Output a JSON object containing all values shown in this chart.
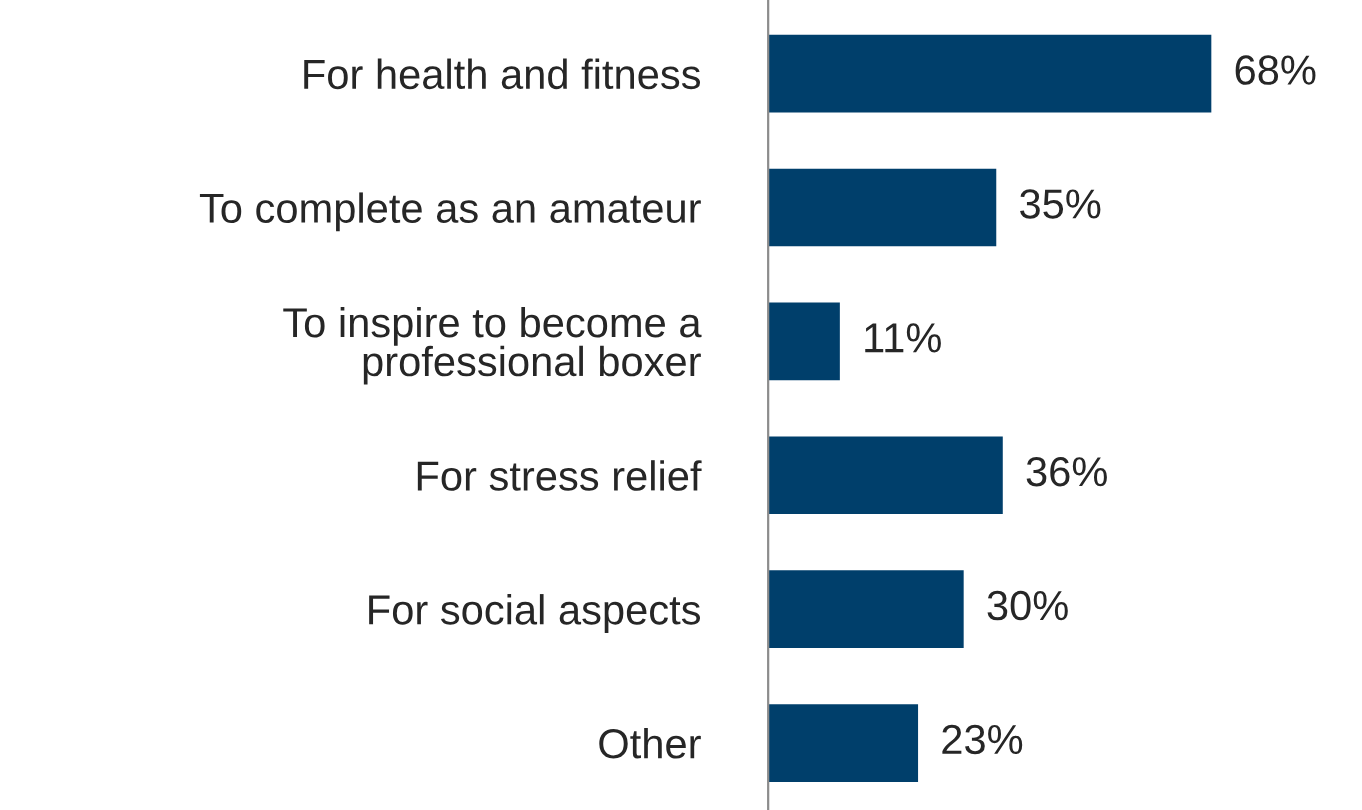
{
  "chart_data": {
    "type": "bar",
    "orientation": "horizontal",
    "categories": [
      "For health and fitness",
      "To complete as an amateur",
      "To inspire to become a\nprofessional boxer",
      "For stress relief",
      "For social aspects",
      "Other"
    ],
    "values": [
      68,
      35,
      11,
      36,
      30,
      23
    ],
    "color": "#003f6b",
    "value_labels": [
      "68%",
      "35%",
      "11%",
      "36%",
      "30%",
      "23%"
    ],
    "grid": false,
    "legend": false
  }
}
